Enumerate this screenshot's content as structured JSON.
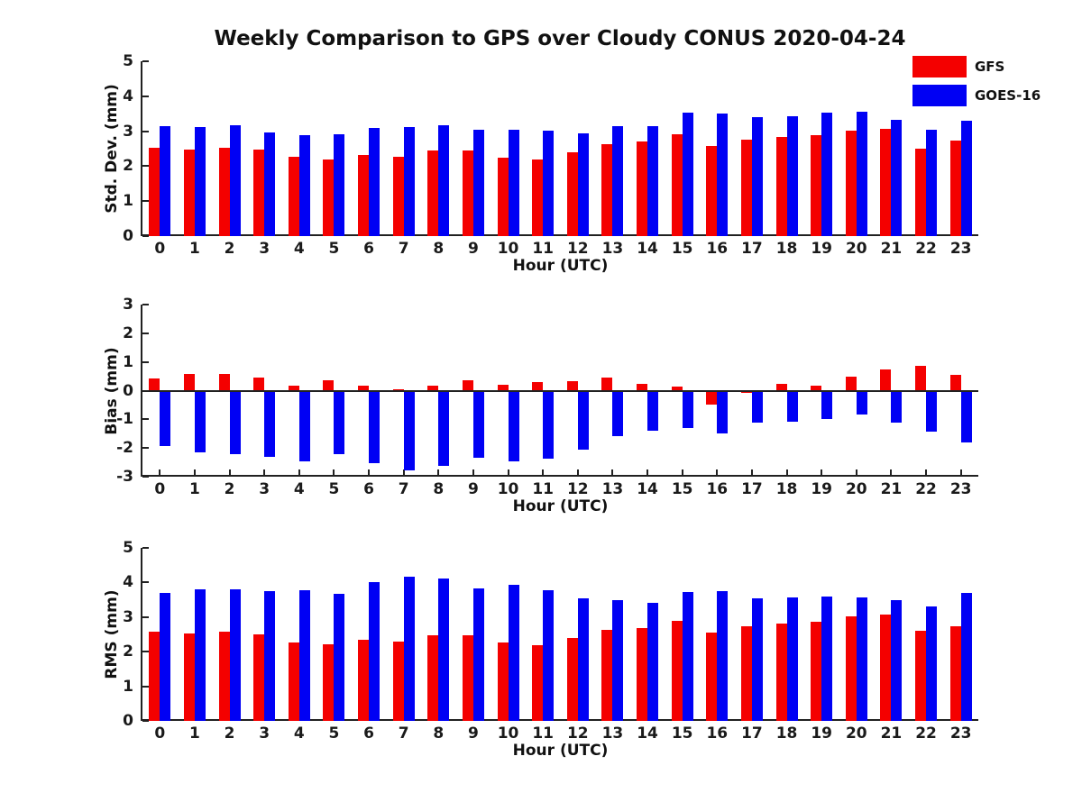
{
  "title": "Weekly Comparison to GPS over Cloudy CONUS 2020-04-24",
  "legend": {
    "items": [
      {
        "label": "GFS",
        "color": "#f40000"
      },
      {
        "label": "GOES-16",
        "color": "#0000f4"
      }
    ]
  },
  "chart_data": [
    {
      "type": "bar",
      "ylabel": "Std. Dev. (mm)",
      "xlabel": "Hour (UTC)",
      "categories": [
        "0",
        "1",
        "2",
        "3",
        "4",
        "5",
        "6",
        "7",
        "8",
        "9",
        "10",
        "11",
        "12",
        "13",
        "14",
        "15",
        "16",
        "17",
        "18",
        "19",
        "20",
        "21",
        "22",
        "23"
      ],
      "ylim": [
        0,
        5
      ],
      "yticks": [
        5,
        4,
        3,
        2,
        1,
        0
      ],
      "grid": false,
      "legend_position": "upper-right-outside",
      "series": [
        {
          "name": "GFS",
          "color": "#f40000",
          "values": [
            2.52,
            2.47,
            2.52,
            2.47,
            2.28,
            2.2,
            2.33,
            2.28,
            2.46,
            2.46,
            2.25,
            2.18,
            2.4,
            2.62,
            2.7,
            2.92,
            2.57,
            2.76,
            2.84,
            2.88,
            3.02,
            3.06,
            2.49,
            2.72
          ]
        },
        {
          "name": "GOES-16",
          "color": "#0000f4",
          "values": [
            3.15,
            3.12,
            3.16,
            2.96,
            2.89,
            2.92,
            3.08,
            3.12,
            3.17,
            3.04,
            3.05,
            3.02,
            2.94,
            3.14,
            3.14,
            3.52,
            3.5,
            3.4,
            3.43,
            3.52,
            3.55,
            3.32,
            3.04,
            3.29
          ]
        }
      ]
    },
    {
      "type": "bar",
      "ylabel": "Bias (mm)",
      "xlabel": "Hour (UTC)",
      "categories": [
        "0",
        "1",
        "2",
        "3",
        "4",
        "5",
        "6",
        "7",
        "8",
        "9",
        "10",
        "11",
        "12",
        "13",
        "14",
        "15",
        "16",
        "17",
        "18",
        "19",
        "20",
        "21",
        "22",
        "23"
      ],
      "ylim": [
        -3,
        3
      ],
      "yticks": [
        3,
        2,
        1,
        0,
        -1,
        -2,
        -3
      ],
      "grid": false,
      "series": [
        {
          "name": "GFS",
          "color": "#f40000",
          "values": [
            0.43,
            0.57,
            0.57,
            0.45,
            0.18,
            0.35,
            0.16,
            0.06,
            0.16,
            0.35,
            0.21,
            0.31,
            0.33,
            0.47,
            0.22,
            0.13,
            -0.48,
            -0.08,
            0.22,
            0.18,
            0.5,
            0.74,
            0.85,
            0.55
          ]
        },
        {
          "name": "GOES-16",
          "color": "#0000f4",
          "values": [
            -1.93,
            -2.14,
            -2.2,
            -2.32,
            -2.46,
            -2.23,
            -2.54,
            -2.77,
            -2.63,
            -2.33,
            -2.48,
            -2.36,
            -2.07,
            -1.6,
            -1.4,
            -1.3,
            -1.5,
            -1.13,
            -1.08,
            -0.99,
            -0.82,
            -1.13,
            -1.43,
            -1.82
          ]
        }
      ]
    },
    {
      "type": "bar",
      "ylabel": "RMS (mm)",
      "xlabel": "Hour (UTC)",
      "categories": [
        "0",
        "1",
        "2",
        "3",
        "4",
        "5",
        "6",
        "7",
        "8",
        "9",
        "10",
        "11",
        "12",
        "13",
        "14",
        "15",
        "16",
        "17",
        "18",
        "19",
        "20",
        "21",
        "22",
        "23"
      ],
      "ylim": [
        0,
        5
      ],
      "yticks": [
        5,
        4,
        3,
        2,
        1,
        0
      ],
      "grid": false,
      "series": [
        {
          "name": "GFS",
          "color": "#f40000",
          "values": [
            2.57,
            2.53,
            2.57,
            2.5,
            2.27,
            2.22,
            2.35,
            2.3,
            2.48,
            2.48,
            2.27,
            2.2,
            2.39,
            2.62,
            2.68,
            2.88,
            2.56,
            2.73,
            2.82,
            2.87,
            3.02,
            3.08,
            2.6,
            2.74
          ]
        },
        {
          "name": "GOES-16",
          "color": "#0000f4",
          "values": [
            3.69,
            3.79,
            3.81,
            3.76,
            3.78,
            3.68,
            4.0,
            4.17,
            4.12,
            3.84,
            3.92,
            3.78,
            3.55,
            3.49,
            3.42,
            3.72,
            3.76,
            3.55,
            3.57,
            3.6,
            3.58,
            3.48,
            3.32,
            3.71
          ]
        }
      ]
    }
  ]
}
